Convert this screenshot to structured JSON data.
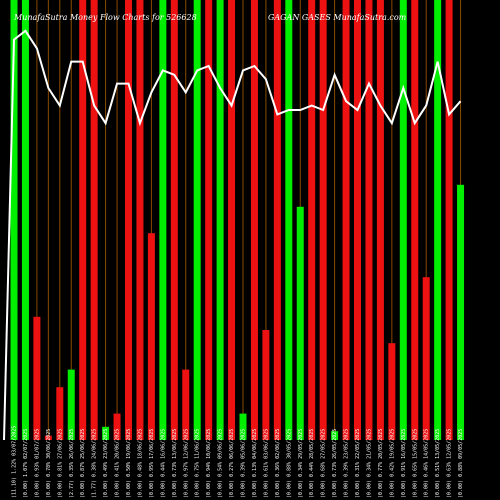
{
  "chart_data": {
    "type": "bar",
    "title": "MunafaSutra  Money Flow  Charts for 526628",
    "title_right": "GAGAN GASES MunafaSutra.com",
    "colors": {
      "background": "#000000",
      "up": "#00ee00",
      "down": "#ee1111",
      "grid": "#8a4b00",
      "line": "#ffffff"
    },
    "ylim": [
      0,
      100
    ],
    "categories": [
      "03/07/2025",
      "02/07/2025",
      "01/07/2025",
      "30/06/2025",
      "27/06/2025",
      "26/06/2025",
      "25/06/2025",
      "24/06/2025",
      "23/06/2025",
      "20/06/2025",
      "19/06/2025",
      "18/06/2025",
      "17/06/2025",
      "16/06/2025",
      "13/06/2025",
      "12/06/2025",
      "11/06/2025",
      "10/06/2025",
      "09/06/2025",
      "06/06/2025",
      "05/06/2025",
      "04/06/2025",
      "03/06/2025",
      "02/06/2025",
      "30/05/2025",
      "29/05/2025",
      "28/05/2025",
      "27/05/2025",
      "26/05/2025",
      "23/05/2025",
      "22/05/2025",
      "21/05/2025",
      "20/05/2025",
      "19/05/2025",
      "16/05/2025",
      "15/05/2025",
      "14/05/2025",
      "13/05/2025",
      "12/05/2025",
      "09/05/2025"
    ],
    "tick_labels": [
      "(11.10) 1.22%",
      "(0.00) 1.07%",
      "(0.00) 0.93%",
      "(0.00) 0.78%",
      "(0.00) 0.81%",
      "(2.77) 0.35%",
      "(0.00) 0.87%",
      "(1.77) 0.38%",
      "(0.00) 0.49%",
      "(0.00) 0.41%",
      "(0.00) 0.50%",
      "(0.00) 0.48%",
      "(0.00) 0.95%",
      "(0.00) 0.44%",
      "(0.00) 0.73%",
      "(0.00) 0.97%",
      "(0.00) 0.75%",
      "(0.00) 0.94%",
      "(0.00) 0.54%",
      "(0.00) 0.27%",
      "(0.00) 0.39%",
      "(0.00) 0.13%",
      "(0.00) 0.61%",
      "(0.00) 0.36%",
      "(0.00) 0.88%",
      "(0.00) 0.34%",
      "(0.00) 0.44%",
      "(0.00) 0.68%",
      "(0.00) 0.73%",
      "(0.00) 0.39%",
      "(0.00) 0.31%",
      "(0.00) 0.34%",
      "(0.00) 0.77%",
      "(0.00) 0.42%",
      "(0.00) 0.91%",
      "(0.00) 0.65%",
      "(0.00) 0.46%",
      "(0.00) 0.51%",
      "(0.00) 0.63%",
      "(0.00) 0.88%"
    ],
    "values": [
      100,
      100,
      28,
      1,
      12,
      16,
      100,
      100,
      3,
      6,
      100,
      100,
      47,
      100,
      100,
      16,
      100,
      100,
      100,
      100,
      6,
      100,
      25,
      100,
      100,
      53,
      100,
      100,
      2,
      100,
      100,
      100,
      100,
      22,
      100,
      100,
      37,
      100,
      100,
      58
    ],
    "directions": [
      "up",
      "up",
      "down",
      "down",
      "down",
      "up",
      "down",
      "down",
      "up",
      "down",
      "down",
      "down",
      "down",
      "up",
      "down",
      "down",
      "up",
      "down",
      "up",
      "down",
      "up",
      "down",
      "down",
      "down",
      "up",
      "up",
      "down",
      "down",
      "up",
      "down",
      "down",
      "down",
      "down",
      "down",
      "up",
      "down",
      "down",
      "up",
      "down",
      "up"
    ],
    "line": [
      91,
      93,
      89,
      80,
      76,
      86,
      86,
      76,
      72,
      81,
      81,
      72,
      79,
      84,
      83,
      79,
      84,
      85,
      80,
      76,
      84,
      85,
      82,
      74,
      75,
      75,
      76,
      75,
      83,
      77,
      75,
      81,
      76,
      72,
      80,
      72,
      76,
      86,
      74,
      77
    ]
  }
}
